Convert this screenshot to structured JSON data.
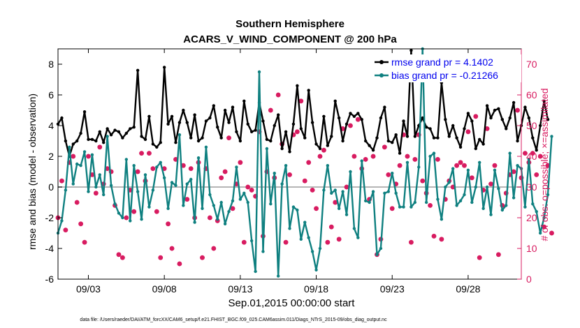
{
  "chart_data": {
    "type": "line",
    "title": "Southern Hemisphere",
    "subtitle": "ACARS_V_WIND_COMPONENT @ 200 hPa",
    "xlabel": "Sep.01,2015 00:00:00 start",
    "ylabel": "rmse and bias (model - observation)",
    "y2label": "# of obs: o=possible; ×=assimilated",
    "footnote": "data file: /Users/raeder/DAI/ATM_forcXX/CAM6_setup/f.e21.FHIST_BGC.f09_025.CAM6assim.011/Diags_NTrS_2015-09/obs_diag_output.nc",
    "x_range_days": [
      1,
      31.5
    ],
    "ylim": [
      -6,
      9
    ],
    "y2lim": [
      0,
      75
    ],
    "y_ticks": [
      -6,
      -4,
      -2,
      0,
      2,
      4,
      6,
      8
    ],
    "y2_ticks": [
      0,
      10,
      20,
      30,
      40,
      50,
      60,
      70
    ],
    "x_ticks": [
      {
        "day": 3,
        "label": "09/03"
      },
      {
        "day": 8,
        "label": "09/08"
      },
      {
        "day": 13,
        "label": "09/13"
      },
      {
        "day": 18,
        "label": "09/18"
      },
      {
        "day": 23,
        "label": "09/23"
      },
      {
        "day": 28,
        "label": "09/28"
      }
    ],
    "grid": false,
    "legend_position": "top-right",
    "colors": {
      "rmse": "#000000",
      "bias": "#0f8080",
      "obs": "#d81b60",
      "zero": "#b5b5b5",
      "legend_text": "#0000ee"
    },
    "legend": [
      "rmse grand pr = 4.1402",
      "bias grand pr = -0.21266"
    ],
    "series": [
      {
        "name": "rmse grand pr = 4.1402",
        "color": "#000000",
        "values": [
          4.1,
          4.5,
          3.0,
          2.0,
          2.8,
          3.0,
          3.5,
          4.9,
          3.1,
          3.1,
          3.0,
          3.6,
          2.9,
          3.8,
          3.4,
          3.7,
          3.6,
          3.2,
          3.5,
          3.8,
          3.9,
          7.6,
          3.3,
          3.1,
          4.6,
          2.8,
          2.6,
          2.9,
          7.8,
          4.1,
          4.6,
          2.9,
          4.2,
          5.0,
          4.2,
          3.2,
          4.7,
          3.0,
          3.2,
          4.3,
          4.5,
          5.3,
          3.9,
          3.2,
          5.0,
          4.2,
          5.2,
          3.6,
          3.0,
          5.6,
          4.1,
          3.6,
          3.7,
          5.5,
          4.3,
          3.1,
          3.0,
          4.0,
          4.7,
          2.5,
          3.6,
          2.3,
          4.1,
          6.6,
          3.8,
          3.2,
          6.3,
          4.2,
          2.8,
          2.5,
          4.6,
          2.7,
          3.3,
          5.6,
          4.5,
          3.0,
          4.1,
          4.8,
          4.6,
          4.8,
          4.4,
          3.0,
          2.7,
          2.4,
          3.2,
          4.5,
          5.2,
          3.0,
          2.9,
          3.4,
          2.2,
          4.3,
          3.3,
          8.9,
          3.3,
          4.0,
          4.5,
          3.9,
          3.8,
          3.2,
          3.2,
          6.8,
          4.4,
          3.3,
          4.0,
          3.2,
          2.6,
          3.8,
          4.8,
          4.3,
          2.5,
          3.1,
          2.8,
          5.3,
          4.5,
          5.0,
          5.1,
          4.4,
          3.8,
          4.5,
          5.5,
          3.0,
          4.0,
          5.2,
          4.5,
          3.2,
          2.4,
          4.0,
          5.6,
          4.4
        ]
      },
      {
        "name": "bias grand pr = -0.21266",
        "color": "#0f8080",
        "values": [
          -3.0,
          -2.2,
          -0.2,
          2.6,
          0.2,
          1.5,
          1.4,
          2.3,
          -0.3,
          2.1,
          0.0,
          0.8,
          -0.5,
          3.3,
          0.1,
          -1.1,
          -1.7,
          -2.0,
          1.8,
          -2.2,
          1.4,
          -0.3,
          -2.1,
          0.8,
          -1.3,
          -0.2,
          1.3,
          1.6,
          0.6,
          -1.4,
          0.3,
          0.1,
          3.4,
          -1.2,
          0.2,
          0.5,
          -2.3,
          1.9,
          -1.4,
          2.6,
          -0.5,
          -1.2,
          -2.1,
          -1.0,
          -2.4,
          -1.6,
          -0.9,
          1.3,
          -0.8,
          -0.4,
          -1.0,
          -3.5,
          -5.5,
          7.5,
          -4.2,
          2.5,
          -1.1,
          0.9,
          -5.8,
          0.2,
          1.4,
          -2.7,
          -1.3,
          -1.5,
          -3.4,
          -2.3,
          -3.3,
          -4.2,
          -5.4,
          -4.0,
          -0.2,
          1.4,
          -0.4,
          -0.2,
          -1.4,
          -0.3,
          -1.8,
          1.0,
          -2.7,
          -3.3,
          1.7,
          -0.9,
          -1.0,
          -0.3,
          -4.4,
          -4.0,
          -0.4,
          -0.3,
          0.9,
          -0.4,
          -1.3,
          -1.3,
          1.6,
          -1.3,
          -1.0,
          1.3,
          9.0,
          -1.0,
          2.0,
          2.2,
          -0.8,
          -2.1,
          0.0,
          0.3,
          1.2,
          -1.2,
          -0.9,
          -0.5,
          1.1,
          -1.0,
          0.0,
          1.6,
          -1.4,
          0.0,
          -1.8,
          1.1,
          -0.1,
          -1.5,
          -1.2,
          2.2,
          -0.7,
          1.4,
          1.2,
          -1.3,
          1.8,
          -1.1,
          -1.6,
          -3.0,
          -2.0,
          -0.5,
          3.3
        ]
      }
    ],
    "obs_possible": [
      20,
      32,
      16,
      38,
      40,
      25,
      18,
      12,
      40,
      34,
      28,
      43,
      31,
      36,
      35,
      24,
      8,
      7,
      20,
      29,
      22,
      35,
      41,
      32,
      41,
      36,
      22,
      7,
      36,
      18,
      10,
      39,
      5,
      37,
      26,
      36,
      20,
      38,
      7,
      36,
      20,
      10,
      19,
      33,
      35,
      46,
      23,
      31,
      38,
      12,
      30,
      29,
      27,
      48,
      14,
      35,
      55,
      33,
      60,
      44,
      12,
      34,
      47,
      48,
      58,
      32,
      38,
      29,
      23,
      40,
      42,
      12,
      17,
      25,
      13,
      49,
      30,
      50,
      40,
      52,
      36,
      39,
      26,
      40,
      8,
      13,
      43,
      34,
      23,
      31,
      37,
      47,
      40,
      12,
      39,
      47,
      32,
      28,
      24,
      14,
      39,
      13,
      26,
      32,
      30,
      37,
      38,
      37,
      48,
      33,
      53,
      7,
      29,
      49,
      31,
      37,
      8,
      24,
      28,
      34,
      35,
      55,
      33,
      41,
      38,
      41,
      34,
      40,
      17,
      37,
      15
    ],
    "obs_assimilated": [
      20,
      32,
      16,
      38,
      40,
      25,
      18,
      12,
      40,
      34,
      28,
      43,
      31,
      36,
      35,
      24,
      8,
      7,
      20,
      29,
      22,
      35,
      41,
      32,
      41,
      36,
      22,
      7,
      36,
      18,
      10,
      39,
      5,
      37,
      26,
      36,
      20,
      38,
      7,
      36,
      20,
      10,
      19,
      33,
      35,
      46,
      23,
      31,
      38,
      12,
      30,
      29,
      27,
      48,
      14,
      35,
      55,
      33,
      60,
      44,
      12,
      34,
      47,
      48,
      58,
      32,
      38,
      29,
      23,
      40,
      42,
      12,
      17,
      25,
      13,
      49,
      30,
      50,
      40,
      52,
      36,
      39,
      26,
      40,
      8,
      13,
      43,
      34,
      23,
      31,
      37,
      47,
      40,
      12,
      39,
      47,
      32,
      28,
      24,
      14,
      39,
      13,
      26,
      32,
      30,
      37,
      38,
      37,
      48,
      33,
      53,
      7,
      29,
      49,
      31,
      37,
      8,
      24,
      28,
      34,
      35,
      55,
      33,
      41,
      38,
      41,
      34,
      40,
      17,
      37,
      15
    ]
  }
}
